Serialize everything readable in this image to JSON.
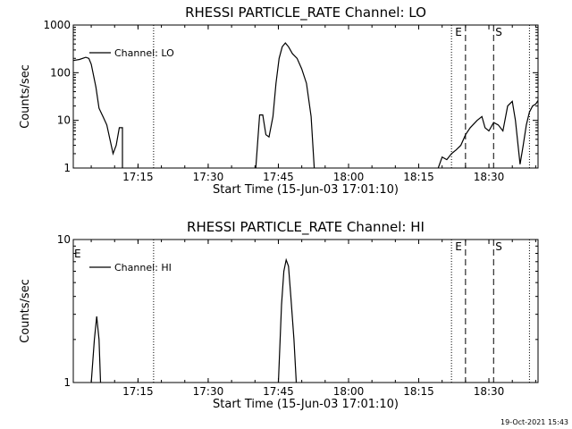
{
  "chart_data": [
    {
      "type": "line",
      "title": "RHESSI PARTICLE_RATE Channel: LO",
      "xlabel": "Start Time (15-Jun-03 17:01:10)",
      "ylabel": "Counts/sec",
      "y_scale": "log",
      "ylim": [
        1,
        1000
      ],
      "y_ticks": [
        1,
        10,
        100,
        1000
      ],
      "y_tick_labels": [
        "1",
        "10",
        "100",
        "1000"
      ],
      "xlim": [
        "17:01:10",
        "18:40:30"
      ],
      "x_ticks": [
        "17:15",
        "17:30",
        "17:45",
        "18:00",
        "18:15",
        "18:30"
      ],
      "legend": {
        "entry": "Channel: LO",
        "placement": "top-left"
      },
      "dotted_lines": [
        "17:18:20",
        "18:22:00",
        "18:38:40"
      ],
      "dashed_lines": [
        {
          "time": "18:25:00",
          "label": "E"
        },
        {
          "time": "18:31:00",
          "label": "S"
        }
      ],
      "series": [
        {
          "name": "Channel: LO",
          "segments": [
            [
              [
                "17:01:10",
                180
              ],
              [
                "17:02:30",
                190
              ],
              [
                "17:03:50",
                210
              ],
              [
                "17:04:30",
                200
              ],
              [
                "17:05:00",
                150
              ],
              [
                "17:06:00",
                50
              ],
              [
                "17:06:40",
                18
              ],
              [
                "17:07:30",
                12
              ],
              [
                "17:08:20",
                8
              ],
              [
                "17:09:00",
                4
              ],
              [
                "17:09:40",
                2
              ],
              [
                "17:10:20",
                3
              ],
              [
                "17:11:00",
                7
              ],
              [
                "17:11:40",
                7
              ],
              [
                "17:11:40",
                1
              ]
            ],
            [
              [
                "17:40:10",
                1
              ],
              [
                "17:41:00",
                13
              ],
              [
                "17:41:40",
                13
              ],
              [
                "17:42:20",
                5
              ],
              [
                "17:43:00",
                4.5
              ],
              [
                "17:43:50",
                12
              ],
              [
                "17:44:30",
                60
              ],
              [
                "17:45:10",
                200
              ],
              [
                "17:45:50",
                350
              ],
              [
                "17:46:30",
                420
              ],
              [
                "17:47:10",
                350
              ],
              [
                "17:48:00",
                250
              ],
              [
                "17:49:00",
                200
              ],
              [
                "17:50:00",
                120
              ],
              [
                "17:51:00",
                60
              ],
              [
                "17:52:00",
                12
              ],
              [
                "17:52:40",
                1
              ]
            ],
            [
              [
                "18:19:10",
                1
              ],
              [
                "18:20:00",
                1.7
              ],
              [
                "18:21:00",
                1.5
              ],
              [
                "18:22:00",
                2
              ],
              [
                "18:23:00",
                2.4
              ],
              [
                "18:24:00",
                3
              ],
              [
                "18:25:00",
                5
              ],
              [
                "18:26:00",
                7
              ],
              [
                "18:27:30",
                10
              ],
              [
                "18:28:30",
                12
              ],
              [
                "18:29:10",
                7
              ],
              [
                "18:30:00",
                6
              ],
              [
                "18:31:00",
                9
              ],
              [
                "18:32:00",
                8
              ],
              [
                "18:33:00",
                6
              ],
              [
                "18:34:00",
                20
              ],
              [
                "18:35:00",
                25
              ],
              [
                "18:35:40",
                10
              ],
              [
                "18:36:40",
                1.2
              ],
              [
                "18:37:20",
                3
              ],
              [
                "18:38:00",
                8
              ],
              [
                "18:38:40",
                15
              ],
              [
                "18:39:20",
                20
              ],
              [
                "18:40:00",
                22
              ],
              [
                "18:40:30",
                26
              ]
            ]
          ]
        }
      ]
    },
    {
      "type": "line",
      "title": "RHESSI PARTICLE_RATE Channel: HI",
      "xlabel": "Start Time (15-Jun-03 17:01:10)",
      "ylabel": "Counts/sec",
      "y_scale": "log",
      "ylim": [
        1,
        10
      ],
      "y_ticks": [
        1,
        10
      ],
      "y_tick_labels": [
        "1",
        "10"
      ],
      "xlim": [
        "17:01:10",
        "18:40:30"
      ],
      "x_ticks": [
        "17:15",
        "17:30",
        "17:45",
        "18:00",
        "18:15",
        "18:30"
      ],
      "legend": {
        "entry": "Channel: HI",
        "placement": "top-left"
      },
      "dotted_lines": [
        "17:18:20",
        "18:22:00",
        "18:38:40"
      ],
      "dashed_lines": [
        {
          "time": "18:25:00",
          "label": "E"
        },
        {
          "time": "18:31:00",
          "label": "S"
        }
      ],
      "corner_label": "E",
      "series": [
        {
          "name": "Channel: HI",
          "segments": [
            [
              [
                "17:05:00",
                1
              ],
              [
                "17:05:40",
                2
              ],
              [
                "17:06:10",
                2.9
              ],
              [
                "17:06:40",
                2
              ],
              [
                "17:07:00",
                1
              ]
            ],
            [
              [
                "17:45:00",
                1
              ],
              [
                "17:45:40",
                3.5
              ],
              [
                "17:46:10",
                6
              ],
              [
                "17:46:40",
                7.2
              ],
              [
                "17:47:10",
                6.5
              ],
              [
                "17:47:40",
                4
              ],
              [
                "17:48:20",
                2
              ],
              [
                "17:48:50",
                1
              ]
            ]
          ]
        }
      ]
    }
  ],
  "footer": {
    "timestamp": "19-Oct-2021 15:43"
  }
}
